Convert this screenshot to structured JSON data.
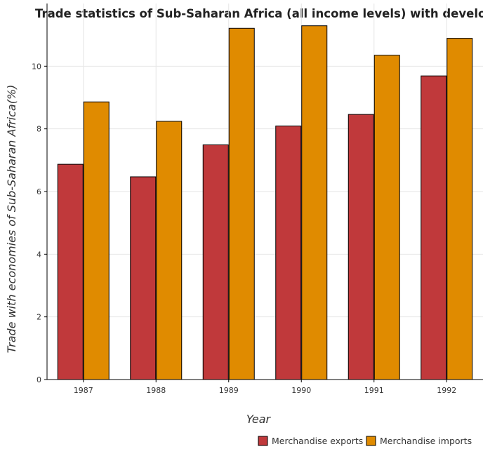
{
  "chart_data": {
    "type": "bar",
    "title": "Trade statistics of Sub-Saharan Africa (all income levels) with developing ec",
    "xlabel": "Year",
    "ylabel": "Trade with economies of Sub-Saharan Africa(%)",
    "categories": [
      "1987",
      "1988",
      "1989",
      "1990",
      "1991",
      "1992"
    ],
    "series": [
      {
        "name": "Merchandise exports",
        "color": "#c0393b",
        "values": [
          6.87,
          6.47,
          7.49,
          8.09,
          8.46,
          9.69
        ]
      },
      {
        "name": "Merchandise imports",
        "color": "#e08b00",
        "values": [
          8.86,
          8.24,
          11.21,
          11.29,
          10.35,
          10.89
        ]
      }
    ],
    "ylim": [
      0,
      12
    ],
    "yticks": [
      0,
      2,
      4,
      6,
      8,
      10
    ],
    "grid": true,
    "legend_position": "bottom-right"
  }
}
